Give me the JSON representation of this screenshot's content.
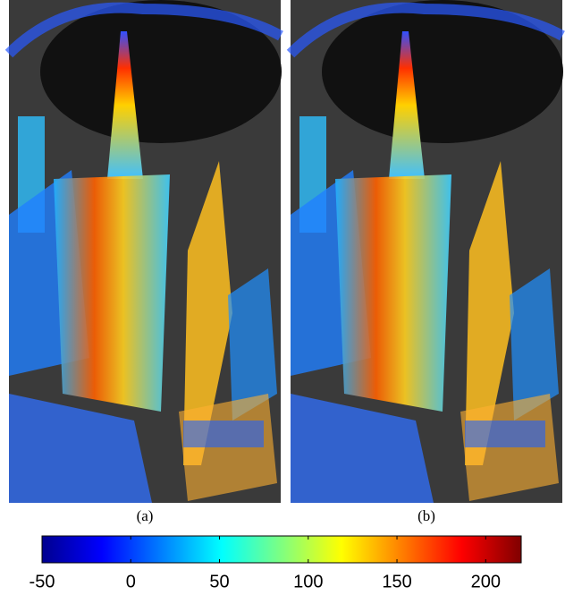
{
  "panels": [
    {
      "label": "(a)"
    },
    {
      "label": "(b)"
    }
  ],
  "colorbar": {
    "colormap": "jet",
    "lim": [
      -50,
      220
    ],
    "ticks": [
      -50,
      0,
      50,
      100,
      150,
      200
    ]
  }
}
